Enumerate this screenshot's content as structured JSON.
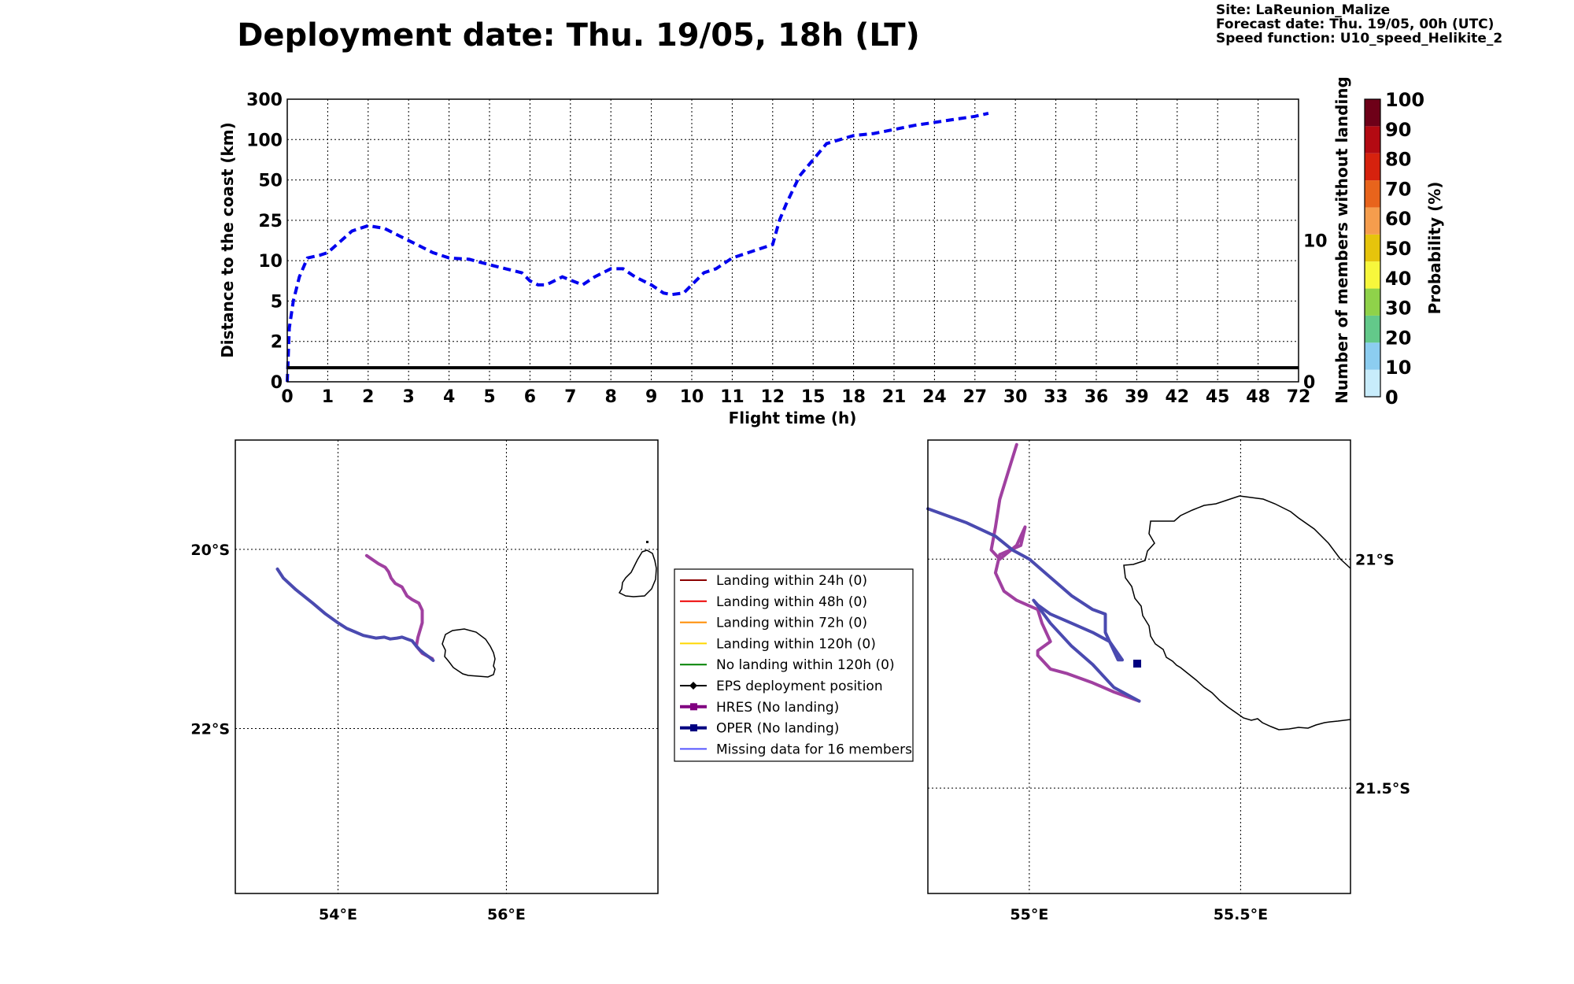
{
  "header": {
    "title": "Deployment date: Thu. 19/05, 18h (LT)",
    "site": "Site: LaReunion_Malize",
    "forecast_date": "Forecast date: Thu. 19/05, 00h (UTC)",
    "speed_function": "Speed function: U10_speed_Helikite_2"
  },
  "chart_data": [
    {
      "type": "line",
      "xlabel": "Flight time (h)",
      "ylabel": "Distance to the coast (km)",
      "y2label": "Number of members without landing",
      "x_ticks": [
        "0",
        "1",
        "2",
        "3",
        "4",
        "5",
        "6",
        "7",
        "8",
        "9",
        "10",
        "11",
        "12",
        "15",
        "18",
        "21",
        "24",
        "27",
        "30",
        "33",
        "36",
        "39",
        "42",
        "45",
        "48",
        "72"
      ],
      "y_ticks": [
        "0",
        "2",
        "5",
        "10",
        "25",
        "50",
        "100",
        "300"
      ],
      "y2_ticks": [
        "0",
        "10"
      ],
      "grid": true,
      "series": [
        {
          "color": "#0000ee",
          "style": "dashed",
          "x": [
            0,
            0.05,
            0.15,
            0.3,
            0.5,
            0.8,
            1.0,
            1.3,
            1.6,
            2.0,
            2.4,
            2.8,
            3.2,
            3.6,
            4.0,
            4.5,
            5.0,
            5.4,
            5.8,
            6.0,
            6.2,
            6.4,
            6.8,
            7.0,
            7.3,
            7.6,
            8.0,
            8.3,
            8.6,
            9.0,
            9.3,
            9.5,
            9.8,
            10.0,
            10.3,
            10.6,
            11.0,
            11.4,
            12.0,
            12.5,
            13.0,
            14.0,
            15.0,
            16.0,
            17.0,
            18.0,
            19.5,
            21.0,
            22.5,
            24.0,
            25.5,
            27.0,
            28.0
          ],
          "y": [
            0,
            3,
            5,
            8,
            11,
            12,
            13,
            17,
            21,
            23,
            22,
            19,
            16,
            13,
            11,
            10.5,
            9.5,
            9,
            8.5,
            7.5,
            7,
            7,
            8,
            7.6,
            7,
            8,
            9,
            9,
            8,
            7,
            6,
            5.8,
            6,
            7,
            8.5,
            9,
            11,
            13,
            16,
            25,
            35,
            55,
            75,
            95,
            100,
            120,
            130,
            150,
            170,
            185,
            200,
            215,
            230
          ]
        },
        {
          "color": "#000000",
          "style": "solid",
          "axis": "right",
          "x": [
            0,
            72
          ],
          "y": [
            1,
            1
          ]
        }
      ]
    },
    {
      "type": "heatmap",
      "colorbar_label": "Probability (%)",
      "ticks": [
        "0",
        "10",
        "20",
        "30",
        "40",
        "50",
        "60",
        "70",
        "80",
        "90",
        "100"
      ],
      "colors": [
        "#c8ecfb",
        "#8ccdf0",
        "#63c98a",
        "#8fd24a",
        "#f7f73c",
        "#e6c40c",
        "#f59d4d",
        "#e8641c",
        "#d6220e",
        "#b30a12",
        "#6e0018"
      ]
    },
    {
      "type": "scatter",
      "name": "map-overview",
      "x_ticks": [
        "54°E",
        "56°E"
      ],
      "y_ticks": [
        "20°S",
        "22°S"
      ],
      "xlim": [
        52.78,
        57.8
      ],
      "ylim": [
        -23.84,
        -18.78
      ],
      "series": [
        {
          "color": "#a040a0",
          "x": [
            54.34,
            54.48,
            54.56,
            54.6,
            54.63,
            54.68,
            54.76,
            54.82,
            54.88,
            54.96,
            55.0,
            55.0,
            54.95,
            54.93,
            55.0,
            55.08,
            55.12
          ],
          "y": [
            -20.07,
            -20.16,
            -20.2,
            -20.25,
            -20.32,
            -20.38,
            -20.42,
            -20.52,
            -20.56,
            -20.6,
            -20.68,
            -20.82,
            -20.98,
            -21.08,
            -21.16,
            -21.2,
            -21.22
          ]
        },
        {
          "color": "#4a4ab0",
          "x": [
            53.28,
            53.35,
            53.5,
            53.7,
            53.85,
            54.0,
            54.1,
            54.2,
            54.3,
            54.45,
            54.55,
            54.62,
            54.7,
            54.76,
            54.82,
            54.88,
            54.93,
            54.97,
            55.02,
            55.08,
            55.13
          ],
          "y": [
            -20.22,
            -20.32,
            -20.45,
            -20.6,
            -20.72,
            -20.82,
            -20.88,
            -20.92,
            -20.96,
            -20.99,
            -20.98,
            -21.0,
            -20.99,
            -20.98,
            -21.0,
            -21.02,
            -21.08,
            -21.12,
            -21.16,
            -21.2,
            -21.24
          ]
        }
      ]
    },
    {
      "type": "scatter",
      "name": "map-zoom",
      "x_ticks": [
        "55°E",
        "55.5°E"
      ],
      "y_ticks": [
        "21°S",
        "21.5°S"
      ],
      "xlim": [
        54.76,
        55.76
      ],
      "ylim": [
        -21.73,
        -20.74
      ],
      "series": [
        {
          "color": "#a040a0",
          "x": [
            54.97,
            54.95,
            54.93,
            54.92,
            54.91,
            54.93,
            54.97,
            54.99,
            54.98,
            54.93,
            54.92,
            54.94,
            54.97,
            55.02,
            55.03,
            55.05,
            55.02,
            55.02,
            55.05,
            55.09,
            55.15,
            55.2,
            55.26
          ],
          "y": [
            -20.75,
            -20.81,
            -20.87,
            -20.93,
            -20.98,
            -21.0,
            -20.97,
            -20.93,
            -20.97,
            -20.99,
            -21.03,
            -21.07,
            -21.09,
            -21.11,
            -21.14,
            -21.18,
            -21.2,
            -21.21,
            -21.24,
            -21.25,
            -21.27,
            -21.29,
            -21.31
          ]
        },
        {
          "color": "#4a4ab0",
          "x": [
            54.76,
            54.85,
            54.92,
            54.96,
            55.0,
            55.05,
            55.1,
            55.15,
            55.18,
            55.18,
            55.2,
            55.21,
            55.22,
            55.19,
            55.15,
            55.1,
            55.05,
            55.02,
            55.01,
            55.05,
            55.1,
            55.15,
            55.2,
            55.26
          ],
          "y": [
            -20.89,
            -20.92,
            -20.95,
            -20.98,
            -21.0,
            -21.04,
            -21.08,
            -21.11,
            -21.12,
            -21.16,
            -21.2,
            -21.22,
            -21.22,
            -21.18,
            -21.16,
            -21.14,
            -21.12,
            -21.1,
            -21.09,
            -21.14,
            -21.19,
            -21.23,
            -21.28,
            -21.31
          ]
        }
      ]
    }
  ],
  "legend": {
    "items": [
      {
        "label": "Landing within 24h (0)",
        "color": "#8b0000",
        "marker": "none",
        "width": 2
      },
      {
        "label": "Landing within 48h (0)",
        "color": "#ee0000",
        "marker": "none",
        "width": 2
      },
      {
        "label": "Landing within 72h (0)",
        "color": "#ff8c00",
        "marker": "none",
        "width": 2
      },
      {
        "label": "Landing within 120h (0)",
        "color": "#ffd700",
        "marker": "none",
        "width": 2
      },
      {
        "label": "No landing within 120h (0)",
        "color": "#008000",
        "marker": "none",
        "width": 2
      },
      {
        "label": "EPS deployment position",
        "color": "#000000",
        "marker": "diamond",
        "width": 2
      },
      {
        "label": "HRES (No landing)",
        "color": "#800080",
        "marker": "square",
        "width": 4
      },
      {
        "label": "OPER (No landing)",
        "color": "#000080",
        "marker": "square",
        "width": 4
      },
      {
        "label": "Missing data for 16 members",
        "color": "#5555ff",
        "marker": "none",
        "width": 2
      }
    ]
  }
}
